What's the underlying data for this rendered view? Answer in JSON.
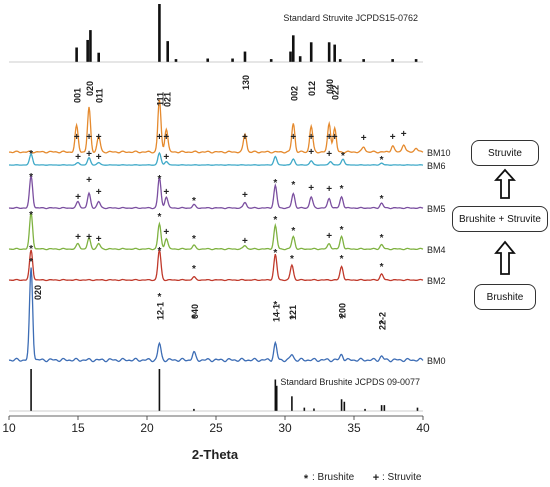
{
  "chart_data": {
    "type": "line",
    "xlabel": "2-Theta",
    "xlim": [
      10,
      40
    ],
    "x_ticks": [
      "10",
      "15",
      "20",
      "25",
      "30",
      "35",
      "40"
    ],
    "reference_patterns": [
      {
        "name": "Standard Struvite JCPDS15-0762",
        "peaks": [
          {
            "x": 14.9,
            "i": 0.25
          },
          {
            "x": 15.7,
            "i": 0.38
          },
          {
            "x": 15.9,
            "i": 0.55
          },
          {
            "x": 16.5,
            "i": 0.16
          },
          {
            "x": 20.9,
            "i": 1.0
          },
          {
            "x": 21.5,
            "i": 0.36
          },
          {
            "x": 22.1,
            "i": 0.05
          },
          {
            "x": 24.4,
            "i": 0.06
          },
          {
            "x": 26.2,
            "i": 0.06
          },
          {
            "x": 27.1,
            "i": 0.18
          },
          {
            "x": 29.0,
            "i": 0.05
          },
          {
            "x": 30.4,
            "i": 0.18
          },
          {
            "x": 30.6,
            "i": 0.46
          },
          {
            "x": 31.1,
            "i": 0.1
          },
          {
            "x": 31.9,
            "i": 0.34
          },
          {
            "x": 33.2,
            "i": 0.34
          },
          {
            "x": 33.6,
            "i": 0.3
          },
          {
            "x": 34.0,
            "i": 0.05
          },
          {
            "x": 35.7,
            "i": 0.05
          },
          {
            "x": 37.8,
            "i": 0.05
          },
          {
            "x": 39.5,
            "i": 0.05
          }
        ]
      },
      {
        "name": "Standard Brushite JCPDS 09-0077",
        "peaks": [
          {
            "x": 11.6,
            "i": 1.0
          },
          {
            "x": 20.9,
            "i": 1.0
          },
          {
            "x": 23.4,
            "i": 0.05
          },
          {
            "x": 29.3,
            "i": 0.75
          },
          {
            "x": 29.4,
            "i": 0.6
          },
          {
            "x": 30.5,
            "i": 0.35
          },
          {
            "x": 31.4,
            "i": 0.08
          },
          {
            "x": 32.1,
            "i": 0.06
          },
          {
            "x": 34.1,
            "i": 0.28
          },
          {
            "x": 34.3,
            "i": 0.22
          },
          {
            "x": 35.8,
            "i": 0.05
          },
          {
            "x": 37.0,
            "i": 0.14
          },
          {
            "x": 37.2,
            "i": 0.14
          },
          {
            "x": 39.6,
            "i": 0.08
          }
        ]
      }
    ],
    "series": [
      {
        "name": "BM10",
        "color": "#e58a2e",
        "peaks": [
          [
            14.9,
            0.5
          ],
          [
            15.8,
            0.85
          ],
          [
            16.5,
            0.3
          ],
          [
            20.9,
            1.0
          ],
          [
            21.4,
            0.45
          ],
          [
            27.1,
            0.35
          ],
          [
            30.6,
            0.55
          ],
          [
            31.9,
            0.5
          ],
          [
            33.2,
            0.55
          ],
          [
            33.6,
            0.45
          ],
          [
            35.7,
            0.1
          ],
          [
            37.8,
            0.12
          ],
          [
            38.6,
            0.15
          ],
          [
            39.5,
            0.08
          ]
        ]
      },
      {
        "name": "BM6",
        "color": "#3fa9c8",
        "peaks": [
          [
            11.6,
            0.9
          ],
          [
            15.0,
            0.2
          ],
          [
            15.8,
            0.6
          ],
          [
            16.5,
            0.2
          ],
          [
            20.9,
            1.0
          ],
          [
            21.4,
            0.3
          ],
          [
            29.3,
            0.7
          ],
          [
            30.6,
            0.5
          ],
          [
            31.9,
            0.35
          ],
          [
            33.3,
            0.3
          ],
          [
            34.2,
            0.5
          ],
          [
            37.0,
            0.15
          ]
        ]
      },
      {
        "name": "BM5",
        "color": "#7b4fa0",
        "peaks": [
          [
            11.6,
            1.0
          ],
          [
            15.0,
            0.2
          ],
          [
            15.8,
            0.45
          ],
          [
            16.5,
            0.2
          ],
          [
            20.9,
            0.95
          ],
          [
            21.4,
            0.35
          ],
          [
            23.4,
            0.1
          ],
          [
            27.1,
            0.18
          ],
          [
            29.3,
            0.7
          ],
          [
            30.6,
            0.45
          ],
          [
            31.9,
            0.35
          ],
          [
            33.2,
            0.3
          ],
          [
            34.1,
            0.35
          ],
          [
            37.0,
            0.15
          ]
        ]
      },
      {
        "name": "BM4",
        "color": "#7fb241",
        "peaks": [
          [
            11.6,
            1.0
          ],
          [
            15.0,
            0.15
          ],
          [
            15.8,
            0.3
          ],
          [
            16.5,
            0.15
          ],
          [
            20.9,
            0.7
          ],
          [
            21.4,
            0.3
          ],
          [
            23.4,
            0.1
          ],
          [
            27.1,
            0.1
          ],
          [
            29.3,
            0.65
          ],
          [
            30.6,
            0.35
          ],
          [
            33.2,
            0.15
          ],
          [
            34.1,
            0.35
          ],
          [
            37.0,
            0.12
          ]
        ]
      },
      {
        "name": "BM2",
        "color": "#c0392b",
        "peaks": [
          [
            11.6,
            1.0
          ],
          [
            20.9,
            1.0
          ],
          [
            23.4,
            0.1
          ],
          [
            29.3,
            0.85
          ],
          [
            30.5,
            0.5
          ],
          [
            34.1,
            0.45
          ],
          [
            37.0,
            0.2
          ]
        ]
      },
      {
        "name": "BM0",
        "color": "#3d6db5",
        "peaks": [
          [
            11.6,
            1.0
          ],
          [
            20.9,
            0.18
          ],
          [
            23.4,
            0.08
          ],
          [
            29.3,
            0.18
          ],
          [
            30.5,
            0.06
          ],
          [
            34.1,
            0.06
          ],
          [
            37.0,
            0.04
          ]
        ]
      }
    ],
    "annotations": [
      {
        "text": "001",
        "x": 14.9
      },
      {
        "text": "020",
        "x": 15.8
      },
      {
        "text": "011",
        "x": 16.5
      },
      {
        "text": "111",
        "x": 20.9
      },
      {
        "text": "021",
        "x": 21.4
      },
      {
        "text": "130",
        "x": 27.1
      },
      {
        "text": "002",
        "x": 30.6
      },
      {
        "text": "012",
        "x": 31.9
      },
      {
        "text": "040",
        "x": 33.2
      },
      {
        "text": "022",
        "x": 33.6
      },
      {
        "text": "020",
        "x": 11.6
      },
      {
        "text": "12-1",
        "x": 20.9
      },
      {
        "text": "040",
        "x": 23.4
      },
      {
        "text": "14-1",
        "x": 29.3
      },
      {
        "text": "121",
        "x": 30.5
      },
      {
        "text": "200",
        "x": 34.1
      },
      {
        "text": "22-2",
        "x": 37.0
      }
    ],
    "legend": [
      {
        "symbol": "*",
        "label": ": Brushite"
      },
      {
        "symbol": "+",
        "label": ": Struvite"
      }
    ]
  },
  "flow": {
    "top": "Struvite",
    "middle": "Brushite + Struvite",
    "bottom": "Brushite"
  }
}
